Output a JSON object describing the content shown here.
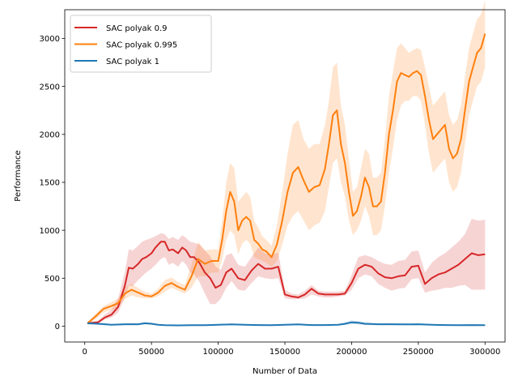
{
  "chart_data": {
    "type": "line",
    "xlabel": "Number of Data",
    "ylabel": "Performance",
    "xlim": [
      -15000,
      315000
    ],
    "ylim": [
      -165,
      3300
    ],
    "xticks": [
      0,
      50000,
      100000,
      150000,
      200000,
      250000,
      300000
    ],
    "yticks": [
      0,
      500,
      1000,
      1500,
      2000,
      2500,
      3000
    ],
    "grid": false,
    "legend_position": "top-left",
    "series": [
      {
        "name": "SAC polyak 0.9",
        "color": "#d62728",
        "x": [
          2000,
          10000,
          15000,
          20000,
          25000,
          30000,
          33000,
          36000,
          40000,
          43000,
          46000,
          50000,
          53000,
          57000,
          60000,
          63000,
          66000,
          70000,
          73000,
          76000,
          79000,
          82000,
          86000,
          90000,
          94000,
          98000,
          102000,
          106000,
          110000,
          115000,
          120000,
          125000,
          130000,
          135000,
          140000,
          145000,
          150000,
          155000,
          160000,
          165000,
          170000,
          175000,
          180000,
          185000,
          190000,
          195000,
          200000,
          205000,
          210000,
          215000,
          220000,
          225000,
          230000,
          235000,
          240000,
          245000,
          250000,
          255000,
          260000,
          265000,
          270000,
          275000,
          280000,
          285000,
          290000,
          295000,
          300000
        ],
        "y": [
          30,
          40,
          90,
          120,
          200,
          420,
          610,
          600,
          650,
          700,
          720,
          760,
          820,
          880,
          880,
          790,
          800,
          760,
          820,
          790,
          720,
          720,
          660,
          560,
          500,
          400,
          430,
          560,
          600,
          500,
          480,
          580,
          650,
          600,
          600,
          620,
          330,
          310,
          300,
          330,
          390,
          340,
          330,
          330,
          330,
          340,
          450,
          600,
          640,
          620,
          550,
          510,
          500,
          520,
          530,
          620,
          630,
          440,
          500,
          540,
          560,
          600,
          640,
          700,
          760,
          740,
          750
        ],
        "lower": [
          20,
          30,
          70,
          90,
          140,
          300,
          420,
          420,
          480,
          520,
          560,
          600,
          640,
          700,
          720,
          640,
          660,
          620,
          680,
          640,
          560,
          540,
          460,
          340,
          230,
          230,
          290,
          400,
          470,
          380,
          370,
          450,
          520,
          500,
          490,
          500,
          290,
          280,
          280,
          290,
          330,
          310,
          300,
          300,
          310,
          320,
          380,
          500,
          540,
          520,
          440,
          400,
          370,
          390,
          400,
          490,
          500,
          350,
          370,
          380,
          400,
          400,
          420,
          430,
          380,
          380,
          380
        ],
        "upper": [
          40,
          60,
          120,
          170,
          290,
          560,
          800,
          790,
          840,
          880,
          900,
          920,
          940,
          970,
          960,
          910,
          930,
          900,
          950,
          920,
          880,
          870,
          850,
          790,
          730,
          620,
          590,
          740,
          760,
          640,
          620,
          720,
          820,
          760,
          740,
          770,
          380,
          340,
          330,
          370,
          430,
          370,
          360,
          360,
          360,
          370,
          530,
          720,
          740,
          720,
          680,
          650,
          640,
          680,
          690,
          780,
          790,
          560,
          660,
          720,
          760,
          820,
          880,
          960,
          1120,
          1100,
          1110
        ]
      },
      {
        "name": "SAC polyak 0.995",
        "color": "#ff7f0e",
        "x": [
          2000,
          8000,
          14000,
          20000,
          25000,
          30000,
          35000,
          40000,
          45000,
          50000,
          55000,
          60000,
          65000,
          70000,
          75000,
          80000,
          85000,
          90000,
          95000,
          100000,
          103000,
          106000,
          109000,
          112000,
          115000,
          118000,
          121000,
          124000,
          127000,
          130000,
          133000,
          136000,
          140000,
          144000,
          148000,
          152000,
          156000,
          160000,
          164000,
          168000,
          172000,
          176000,
          180000,
          183000,
          186000,
          189000,
          192000,
          195000,
          198000,
          201000,
          204000,
          207000,
          210000,
          213000,
          216000,
          219000,
          222000,
          225000,
          228000,
          231000,
          234000,
          237000,
          240000,
          243000,
          246000,
          249000,
          252000,
          255000,
          258000,
          261000,
          264000,
          267000,
          270000,
          273000,
          276000,
          279000,
          282000,
          285000,
          288000,
          291000,
          294000,
          297000,
          300000
        ],
        "y": [
          30,
          100,
          180,
          210,
          240,
          340,
          380,
          350,
          320,
          310,
          350,
          420,
          450,
          410,
          380,
          520,
          700,
          650,
          680,
          680,
          900,
          1200,
          1400,
          1300,
          1000,
          1100,
          1140,
          1100,
          900,
          860,
          800,
          780,
          720,
          850,
          1100,
          1400,
          1600,
          1660,
          1520,
          1400,
          1450,
          1470,
          1640,
          1900,
          2200,
          2250,
          1900,
          1700,
          1400,
          1150,
          1200,
          1350,
          1550,
          1450,
          1250,
          1250,
          1300,
          1600,
          2000,
          2250,
          2550,
          2640,
          2620,
          2600,
          2640,
          2660,
          2620,
          2400,
          2150,
          1950,
          2000,
          2050,
          2100,
          1850,
          1750,
          1800,
          1950,
          2250,
          2550,
          2700,
          2850,
          2900,
          3050
        ],
        "lower": [
          20,
          70,
          140,
          170,
          190,
          280,
          320,
          300,
          290,
          290,
          310,
          360,
          400,
          370,
          340,
          400,
          520,
          520,
          560,
          560,
          700,
          900,
          1000,
          950,
          750,
          860,
          900,
          860,
          720,
          700,
          680,
          660,
          620,
          680,
          850,
          1050,
          1150,
          1200,
          1100,
          1000,
          1050,
          1080,
          1200,
          1450,
          1700,
          1750,
          1500,
          1350,
          1100,
          950,
          1000,
          1100,
          1250,
          1150,
          950,
          950,
          1000,
          1250,
          1600,
          1850,
          2150,
          2300,
          2350,
          2350,
          2400,
          2400,
          2350,
          2100,
          1800,
          1600,
          1650,
          1700,
          1750,
          1500,
          1400,
          1450,
          1600,
          1900,
          2200,
          2350,
          2500,
          2550,
          2700
        ],
        "upper": [
          40,
          130,
          210,
          250,
          290,
          400,
          440,
          400,
          360,
          340,
          390,
          480,
          510,
          460,
          430,
          640,
          880,
          790,
          800,
          800,
          1100,
          1500,
          1700,
          1650,
          1300,
          1350,
          1400,
          1350,
          1100,
          1030,
          940,
          900,
          840,
          1050,
          1400,
          1800,
          2100,
          2150,
          1950,
          1850,
          1900,
          1900,
          2100,
          2350,
          2700,
          2750,
          2300,
          2100,
          1750,
          1400,
          1450,
          1650,
          1850,
          1800,
          1550,
          1550,
          1600,
          1950,
          2400,
          2650,
          2900,
          2950,
          2900,
          2850,
          2880,
          2900,
          2880,
          2700,
          2500,
          2300,
          2350,
          2400,
          2450,
          2200,
          2100,
          2150,
          2300,
          2600,
          2900,
          3050,
          3200,
          3250,
          3400
        ]
      },
      {
        "name": "SAC polyak 1",
        "color": "#1f77b4",
        "x": [
          2000,
          10000,
          20000,
          30000,
          40000,
          45000,
          50000,
          55000,
          60000,
          70000,
          80000,
          90000,
          100000,
          110000,
          120000,
          130000,
          140000,
          150000,
          160000,
          170000,
          180000,
          190000,
          195000,
          200000,
          205000,
          210000,
          220000,
          230000,
          240000,
          250000,
          260000,
          270000,
          280000,
          290000,
          300000
        ],
        "y": [
          30,
          25,
          15,
          20,
          20,
          30,
          25,
          15,
          10,
          8,
          10,
          10,
          15,
          18,
          15,
          12,
          10,
          15,
          18,
          12,
          12,
          15,
          25,
          40,
          35,
          25,
          20,
          20,
          18,
          20,
          15,
          12,
          10,
          12,
          10
        ],
        "lower": [
          20,
          15,
          8,
          10,
          10,
          18,
          15,
          8,
          5,
          4,
          5,
          5,
          8,
          10,
          8,
          6,
          5,
          8,
          10,
          6,
          6,
          8,
          12,
          22,
          18,
          12,
          10,
          10,
          9,
          10,
          8,
          6,
          5,
          6,
          5
        ],
        "upper": [
          40,
          35,
          22,
          30,
          30,
          42,
          35,
          22,
          15,
          12,
          15,
          15,
          22,
          26,
          22,
          18,
          15,
          22,
          26,
          18,
          18,
          22,
          38,
          60,
          52,
          38,
          30,
          30,
          27,
          30,
          22,
          18,
          15,
          18,
          15
        ]
      }
    ]
  }
}
